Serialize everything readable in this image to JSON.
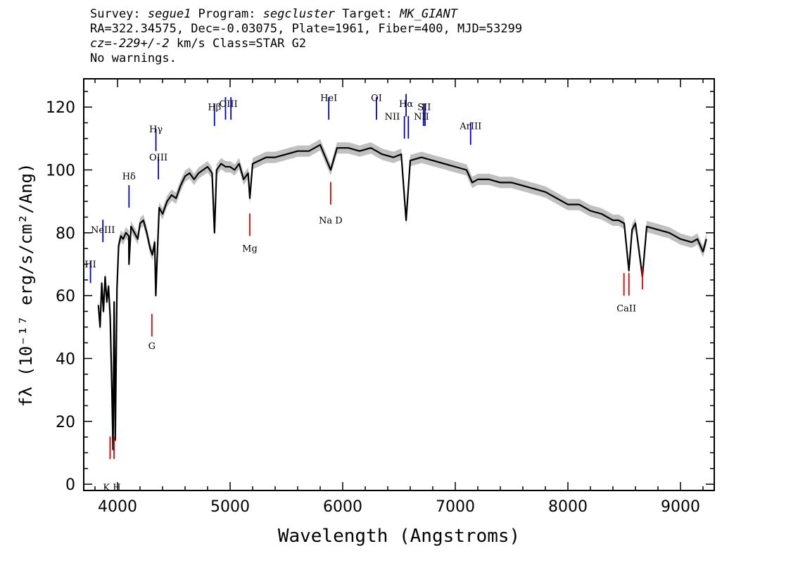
{
  "header": {
    "line1": {
      "survey_label": "Survey: ",
      "survey": "segue1",
      "program_label": " Program: ",
      "program": "segcluster",
      "target_label": " Target: ",
      "target": "MK_GIANT"
    },
    "line2": "RA=322.34575, Dec=-0.03075, Plate=1961, Fiber=400, MJD=53299",
    "line3": {
      "cz": "cz",
      "value": "=-229+/-2",
      "rest": " km/s Class=STAR G2"
    },
    "line4": "No warnings."
  },
  "chart_data": {
    "type": "line",
    "title": "",
    "xlabel": "Wavelength (Angstroms)",
    "ylabel": "fλ (10⁻¹⁷ erg/s/cm²/Ang)",
    "xlim": [
      3700,
      9300
    ],
    "ylim": [
      -2,
      129
    ],
    "x_ticks": [
      4000,
      5000,
      6000,
      7000,
      8000,
      9000
    ],
    "y_ticks": [
      0,
      20,
      40,
      60,
      80,
      100,
      120
    ],
    "series": [
      {
        "color": "#000000",
        "x": [
          3830,
          3845,
          3860,
          3875,
          3890,
          3905,
          3920,
          3935,
          3950,
          3960,
          3970,
          3980,
          3995,
          4010,
          4030,
          4050,
          4075,
          4100,
          4102,
          4120,
          4150,
          4180,
          4200,
          4230,
          4260,
          4290,
          4310,
          4330,
          4340,
          4350,
          4370,
          4400,
          4440,
          4480,
          4520,
          4560,
          4600,
          4640,
          4680,
          4720,
          4760,
          4800,
          4840,
          4861,
          4880,
          4920,
          4960,
          5000,
          5040,
          5080,
          5120,
          5160,
          5175,
          5200,
          5260,
          5320,
          5400,
          5500,
          5600,
          5700,
          5800,
          5893,
          5950,
          6050,
          6150,
          6250,
          6350,
          6450,
          6520,
          6563,
          6600,
          6700,
          6800,
          6900,
          7000,
          7100,
          7150,
          7200,
          7300,
          7400,
          7500,
          7600,
          7700,
          7800,
          7900,
          8000,
          8100,
          8200,
          8300,
          8400,
          8450,
          8500,
          8542,
          8570,
          8600,
          8662,
          8700,
          8800,
          8900,
          9000,
          9100,
          9150,
          9200,
          9230
        ],
        "y": [
          57,
          50,
          64,
          55,
          66,
          58,
          63,
          53,
          30,
          11,
          58,
          14,
          62,
          76,
          79,
          78,
          80,
          79,
          70,
          82,
          80,
          78,
          83,
          84,
          80,
          75,
          73,
          77,
          60,
          70,
          88,
          86,
          90,
          92,
          91,
          95,
          98,
          99,
          97,
          99,
          100,
          101,
          99,
          80,
          100,
          102,
          101,
          101,
          100,
          102,
          97,
          99,
          91,
          102,
          103,
          104,
          104,
          105,
          106,
          106,
          108,
          100,
          107,
          107,
          106,
          107,
          105,
          104,
          105,
          84,
          103,
          104,
          103,
          102,
          101,
          100,
          96,
          97,
          97,
          96,
          96,
          95,
          94,
          93,
          91,
          89,
          89,
          87,
          86,
          84,
          84,
          83,
          68,
          81,
          83,
          66,
          82,
          81,
          80,
          78,
          77,
          78,
          74,
          78
        ]
      }
    ],
    "emission_lines": [
      {
        "label": "HI",
        "x": 3760,
        "y": 64
      },
      {
        "label": "NeIII",
        "x": 3870,
        "y": 77
      },
      {
        "label": "Hδ",
        "x": 4102,
        "y": 88
      },
      {
        "label": "Hγ",
        "x": 4341,
        "y": 106
      },
      {
        "label": "OIII",
        "x": 4363,
        "y": 97
      },
      {
        "label": "Hβ",
        "x": 4861,
        "y": 114
      },
      {
        "label": "OIII",
        "x": 4959,
        "y": 116
      },
      {
        "label": "OIII",
        "x": 5007,
        "y": 116
      },
      {
        "label": "HeI",
        "x": 5876,
        "y": 116
      },
      {
        "label": "OI",
        "x": 6300,
        "y": 116
      },
      {
        "label": "NII",
        "x": 6548,
        "y": 110
      },
      {
        "label": "Hα",
        "x": 6563,
        "y": 117
      },
      {
        "label": "NII",
        "x": 6583,
        "y": 110
      },
      {
        "label": "SII",
        "x": 6717,
        "y": 114
      },
      {
        "label": "SII",
        "x": 6731,
        "y": 114
      },
      {
        "label": "ArIII",
        "x": 7136,
        "y": 108
      }
    ],
    "emission_text": [
      {
        "text": "HI",
        "x": 3760,
        "y": 69
      },
      {
        "text": "NeIII",
        "x": 3870,
        "y": 80
      },
      {
        "text": "Hδ",
        "x": 4102,
        "y": 97
      },
      {
        "text": "Hγ",
        "x": 4341,
        "y": 112
      },
      {
        "text": "OIII",
        "x": 4363,
        "y": 103
      },
      {
        "text": "Hβ",
        "x": 4861,
        "y": 119
      },
      {
        "text": "OIII",
        "x": 4985,
        "y": 120
      },
      {
        "text": "HeI",
        "x": 5876,
        "y": 122
      },
      {
        "text": "OI",
        "x": 6300,
        "y": 122
      },
      {
        "text": "NII",
        "x": 6440,
        "y": 116
      },
      {
        "text": "Hα",
        "x": 6563,
        "y": 120
      },
      {
        "text": "SII",
        "x": 6724,
        "y": 119
      },
      {
        "text": "NII",
        "x": 6700,
        "y": 116
      },
      {
        "text": "ArIII",
        "x": 7136,
        "y": 113
      }
    ],
    "absorption_lines": [
      {
        "label": "K",
        "x": 3934,
        "y": 8
      },
      {
        "label": "H",
        "x": 3969,
        "y": 8
      },
      {
        "label": "G",
        "x": 4305,
        "y": 47
      },
      {
        "label": "Mg",
        "x": 5175,
        "y": 79
      },
      {
        "label": "Na D",
        "x": 5893,
        "y": 89
      },
      {
        "label": "CaII",
        "x": 8498,
        "y": 60
      },
      {
        "label": "CaII",
        "x": 8542,
        "y": 60
      },
      {
        "label": "CaII",
        "x": 8662,
        "y": 62
      }
    ],
    "absorption_text": [
      {
        "text": "K H",
        "x": 3950,
        "y": -2
      },
      {
        "text": "G",
        "x": 4305,
        "y": 43
      },
      {
        "text": "Mg",
        "x": 5175,
        "y": 74
      },
      {
        "text": "Na D",
        "x": 5893,
        "y": 83
      },
      {
        "text": "CaII",
        "x": 8520,
        "y": 55
      }
    ],
    "emission_color": "#0000cc",
    "absorption_color": "#dd0000",
    "error_color": "#c0c0c0"
  }
}
